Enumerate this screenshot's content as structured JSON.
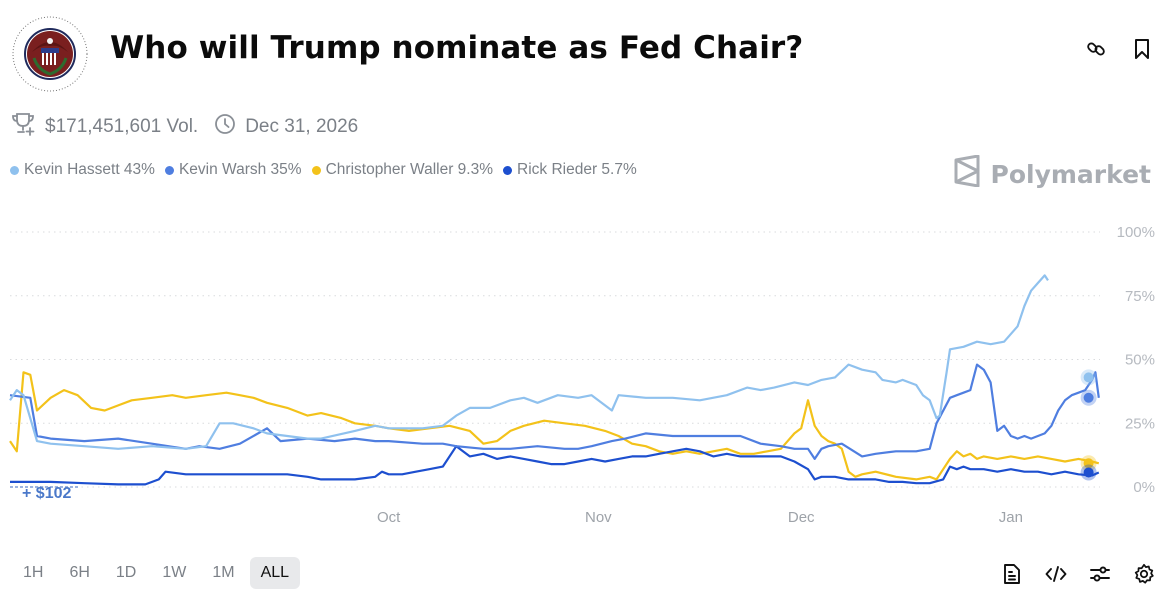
{
  "header": {
    "title": "Who will Trump nominate as Fed Chair?",
    "logo": "federal-reserve-seal",
    "logo_text": "BOARD OF GOVERNORS · OF THE FEDERAL RESERVE SYSTEM",
    "actions": [
      {
        "name": "link-icon",
        "label": "Copy link"
      },
      {
        "name": "bookmark-icon",
        "label": "Bookmark"
      }
    ]
  },
  "meta": {
    "volume": "$171,451,601 Vol.",
    "end_date": "Dec 31, 2026",
    "trophy_icon": "trophy-plus-icon",
    "clock_icon": "clock-icon"
  },
  "brand": {
    "name": "Polymarket"
  },
  "legend": [
    {
      "label": "Kevin Hassett 43%",
      "color": "#8fc1ee"
    },
    {
      "label": "Kevin Warsh 35%",
      "color": "#4f7ee0"
    },
    {
      "label": "Christopher Waller 9.3%",
      "color": "#f3c21a"
    },
    {
      "label": "Rick Rieder 5.7%",
      "color": "#1d4fcf"
    }
  ],
  "volume_annotation": "+ $102",
  "range_buttons": [
    {
      "label": "1H",
      "active": false
    },
    {
      "label": "6H",
      "active": false
    },
    {
      "label": "1D",
      "active": false
    },
    {
      "label": "1W",
      "active": false
    },
    {
      "label": "1M",
      "active": false
    },
    {
      "label": "ALL",
      "active": true
    }
  ],
  "bottom_tools": [
    "document-icon",
    "code-embed-icon",
    "sliders-icon",
    "settings-gear-icon"
  ],
  "chart_data": {
    "type": "line",
    "title": "Who will Trump nominate as Fed Chair?",
    "xlabel": "",
    "ylabel": "",
    "x_unit": "days relative to Oct 1",
    "xlim": [
      -56,
      104
    ],
    "ylim": [
      0,
      100
    ],
    "yticks": [
      0,
      25,
      50,
      75,
      100
    ],
    "ytick_labels": [
      "0%",
      "25%",
      "50%",
      "75%",
      "100%"
    ],
    "xticks": [
      0,
      31,
      61,
      92
    ],
    "xtick_labels": [
      "Oct",
      "Nov",
      "Dec",
      "Jan"
    ],
    "grid": "horizontal-dotted",
    "legend_position": "top-left",
    "series": [
      {
        "name": "Kevin Hassett",
        "color": "#8fc1ee",
        "current": 43,
        "points": [
          [
            -56,
            34
          ],
          [
            -55,
            38
          ],
          [
            -54,
            36
          ],
          [
            -52,
            18
          ],
          [
            -50,
            17
          ],
          [
            -45,
            16
          ],
          [
            -40,
            15
          ],
          [
            -35,
            16
          ],
          [
            -30,
            15
          ],
          [
            -27,
            16
          ],
          [
            -25,
            25
          ],
          [
            -23,
            25
          ],
          [
            -20,
            23
          ],
          [
            -18,
            21
          ],
          [
            -15,
            20
          ],
          [
            -12,
            19
          ],
          [
            -10,
            19
          ],
          [
            -5,
            22
          ],
          [
            -2,
            24
          ],
          [
            0,
            23
          ],
          [
            5,
            23
          ],
          [
            8,
            24
          ],
          [
            10,
            28
          ],
          [
            12,
            31
          ],
          [
            15,
            31
          ],
          [
            18,
            34
          ],
          [
            20,
            35
          ],
          [
            22,
            33
          ],
          [
            25,
            36
          ],
          [
            28,
            35
          ],
          [
            30,
            36
          ],
          [
            33,
            30
          ],
          [
            34,
            36
          ],
          [
            38,
            35
          ],
          [
            42,
            35
          ],
          [
            46,
            34
          ],
          [
            50,
            36
          ],
          [
            53,
            39
          ],
          [
            55,
            38
          ],
          [
            57,
            39
          ],
          [
            60,
            41
          ],
          [
            62,
            40
          ],
          [
            64,
            42
          ],
          [
            66,
            43
          ],
          [
            68,
            48
          ],
          [
            70,
            46
          ],
          [
            72,
            45
          ],
          [
            73,
            42
          ],
          [
            75,
            41
          ],
          [
            76,
            42
          ],
          [
            78,
            40
          ],
          [
            79,
            36
          ],
          [
            80,
            34
          ],
          [
            81,
            27
          ],
          [
            81.5,
            28
          ],
          [
            82.5,
            45
          ],
          [
            83,
            54
          ],
          [
            85,
            55
          ],
          [
            87,
            57
          ],
          [
            89,
            56
          ],
          [
            91,
            57
          ],
          [
            93,
            63
          ],
          [
            94,
            71
          ],
          [
            95,
            77
          ],
          [
            96,
            80
          ],
          [
            97,
            83
          ],
          [
            97.5,
            81
          ]
        ]
      },
      {
        "name": "Kevin Warsh",
        "color": "#4f7ee0",
        "current": 35,
        "points": [
          [
            -56,
            36
          ],
          [
            -53,
            35
          ],
          [
            -52,
            20
          ],
          [
            -50,
            19
          ],
          [
            -45,
            18
          ],
          [
            -40,
            19
          ],
          [
            -35,
            17
          ],
          [
            -30,
            15
          ],
          [
            -28,
            16
          ],
          [
            -25,
            15
          ],
          [
            -22,
            17
          ],
          [
            -18,
            23
          ],
          [
            -16,
            18
          ],
          [
            -12,
            19
          ],
          [
            -8,
            18
          ],
          [
            -5,
            19
          ],
          [
            -2,
            18
          ],
          [
            0,
            18
          ],
          [
            5,
            17
          ],
          [
            8,
            17
          ],
          [
            10,
            16
          ],
          [
            14,
            15
          ],
          [
            18,
            15
          ],
          [
            22,
            16
          ],
          [
            26,
            15
          ],
          [
            28,
            15
          ],
          [
            30,
            16
          ],
          [
            33,
            18
          ],
          [
            35,
            19
          ],
          [
            38,
            21
          ],
          [
            42,
            20
          ],
          [
            45,
            20
          ],
          [
            48,
            20
          ],
          [
            52,
            20
          ],
          [
            55,
            17
          ],
          [
            58,
            16
          ],
          [
            60,
            15
          ],
          [
            62,
            15
          ],
          [
            63,
            11
          ],
          [
            64,
            15
          ],
          [
            65,
            16
          ],
          [
            67,
            17
          ],
          [
            70,
            12
          ],
          [
            72,
            13
          ],
          [
            75,
            14
          ],
          [
            78,
            14
          ],
          [
            80,
            15
          ],
          [
            81,
            25
          ],
          [
            83,
            35
          ],
          [
            84,
            36
          ],
          [
            85,
            37
          ],
          [
            86,
            38
          ],
          [
            87,
            48
          ],
          [
            88,
            46
          ],
          [
            89,
            41
          ],
          [
            90,
            22
          ],
          [
            91,
            24
          ],
          [
            92,
            20
          ],
          [
            93,
            19
          ],
          [
            94,
            20
          ],
          [
            95,
            19
          ],
          [
            96,
            20
          ],
          [
            97,
            21
          ],
          [
            98,
            24
          ],
          [
            99,
            30
          ],
          [
            100,
            34
          ],
          [
            101,
            36
          ],
          [
            102,
            37
          ],
          [
            103,
            38
          ],
          [
            104,
            42
          ],
          [
            104.5,
            45
          ],
          [
            105,
            35
          ]
        ]
      },
      {
        "name": "Christopher Waller",
        "color": "#f3c21a",
        "current": 9.3,
        "points": [
          [
            -56,
            18
          ],
          [
            -55,
            14
          ],
          [
            -54,
            45
          ],
          [
            -53,
            44
          ],
          [
            -52,
            30
          ],
          [
            -50,
            35
          ],
          [
            -48,
            38
          ],
          [
            -46,
            36
          ],
          [
            -44,
            31
          ],
          [
            -42,
            30
          ],
          [
            -40,
            32
          ],
          [
            -38,
            34
          ],
          [
            -35,
            35
          ],
          [
            -32,
            36
          ],
          [
            -30,
            35
          ],
          [
            -27,
            36
          ],
          [
            -24,
            37
          ],
          [
            -22,
            36
          ],
          [
            -20,
            35
          ],
          [
            -18,
            33
          ],
          [
            -15,
            31
          ],
          [
            -12,
            28
          ],
          [
            -10,
            29
          ],
          [
            -7,
            27
          ],
          [
            -5,
            25
          ],
          [
            -2,
            24
          ],
          [
            0,
            23
          ],
          [
            3,
            22
          ],
          [
            6,
            23
          ],
          [
            9,
            24
          ],
          [
            12,
            22
          ],
          [
            14,
            17
          ],
          [
            16,
            18
          ],
          [
            18,
            22
          ],
          [
            20,
            24
          ],
          [
            23,
            26
          ],
          [
            26,
            25
          ],
          [
            29,
            24
          ],
          [
            32,
            22
          ],
          [
            34,
            20
          ],
          [
            36,
            17
          ],
          [
            38,
            16
          ],
          [
            40,
            14
          ],
          [
            42,
            13
          ],
          [
            44,
            14
          ],
          [
            46,
            13
          ],
          [
            48,
            14
          ],
          [
            50,
            15
          ],
          [
            52,
            13
          ],
          [
            54,
            13
          ],
          [
            56,
            14
          ],
          [
            58,
            15
          ],
          [
            60,
            21
          ],
          [
            61,
            23
          ],
          [
            62,
            34
          ],
          [
            63,
            24
          ],
          [
            64,
            20
          ],
          [
            65,
            18
          ],
          [
            66,
            17
          ],
          [
            67,
            15
          ],
          [
            68,
            6
          ],
          [
            69,
            4
          ],
          [
            70,
            5
          ],
          [
            72,
            6
          ],
          [
            75,
            4
          ],
          [
            78,
            3
          ],
          [
            80,
            4
          ],
          [
            81,
            3
          ],
          [
            82,
            7
          ],
          [
            83,
            11
          ],
          [
            84,
            14
          ],
          [
            85,
            12
          ],
          [
            86,
            13
          ],
          [
            87,
            11
          ],
          [
            88,
            12
          ],
          [
            90,
            11
          ],
          [
            92,
            12
          ],
          [
            94,
            11
          ],
          [
            96,
            12
          ],
          [
            98,
            11
          ],
          [
            100,
            10
          ],
          [
            102,
            11
          ],
          [
            104,
            10
          ],
          [
            105,
            9.3
          ]
        ]
      },
      {
        "name": "Rick Rieder",
        "color": "#1d4fcf",
        "current": 5.7,
        "points": [
          [
            -56,
            2
          ],
          [
            -50,
            2
          ],
          [
            -45,
            1.5
          ],
          [
            -40,
            1
          ],
          [
            -36,
            1
          ],
          [
            -34,
            3
          ],
          [
            -33,
            6
          ],
          [
            -30,
            5
          ],
          [
            -25,
            5
          ],
          [
            -20,
            5
          ],
          [
            -15,
            5
          ],
          [
            -12,
            4
          ],
          [
            -10,
            3
          ],
          [
            -5,
            3
          ],
          [
            -2,
            4
          ],
          [
            -1,
            6
          ],
          [
            0,
            5
          ],
          [
            2,
            5
          ],
          [
            4,
            6
          ],
          [
            6,
            7
          ],
          [
            8,
            8
          ],
          [
            10,
            16
          ],
          [
            12,
            12
          ],
          [
            14,
            13
          ],
          [
            16,
            11
          ],
          [
            18,
            12
          ],
          [
            20,
            11
          ],
          [
            22,
            10
          ],
          [
            24,
            9
          ],
          [
            26,
            9
          ],
          [
            28,
            10
          ],
          [
            30,
            11
          ],
          [
            32,
            10
          ],
          [
            34,
            11
          ],
          [
            36,
            12
          ],
          [
            38,
            12
          ],
          [
            40,
            13
          ],
          [
            42,
            14
          ],
          [
            44,
            15
          ],
          [
            46,
            14
          ],
          [
            48,
            12
          ],
          [
            50,
            13
          ],
          [
            52,
            12
          ],
          [
            54,
            12
          ],
          [
            56,
            12
          ],
          [
            58,
            12
          ],
          [
            60,
            10
          ],
          [
            62,
            7
          ],
          [
            63,
            3
          ],
          [
            64,
            4
          ],
          [
            66,
            4
          ],
          [
            68,
            3
          ],
          [
            70,
            3
          ],
          [
            72,
            3
          ],
          [
            74,
            2
          ],
          [
            76,
            2
          ],
          [
            78,
            1.5
          ],
          [
            80,
            1.5
          ],
          [
            82,
            3
          ],
          [
            83,
            8
          ],
          [
            84,
            7
          ],
          [
            85,
            8
          ],
          [
            86,
            7
          ],
          [
            88,
            7
          ],
          [
            90,
            6
          ],
          [
            92,
            7
          ],
          [
            94,
            6
          ],
          [
            96,
            6
          ],
          [
            98,
            5
          ],
          [
            100,
            6
          ],
          [
            102,
            5
          ],
          [
            104,
            4.5
          ],
          [
            105,
            5.7
          ]
        ]
      }
    ]
  }
}
